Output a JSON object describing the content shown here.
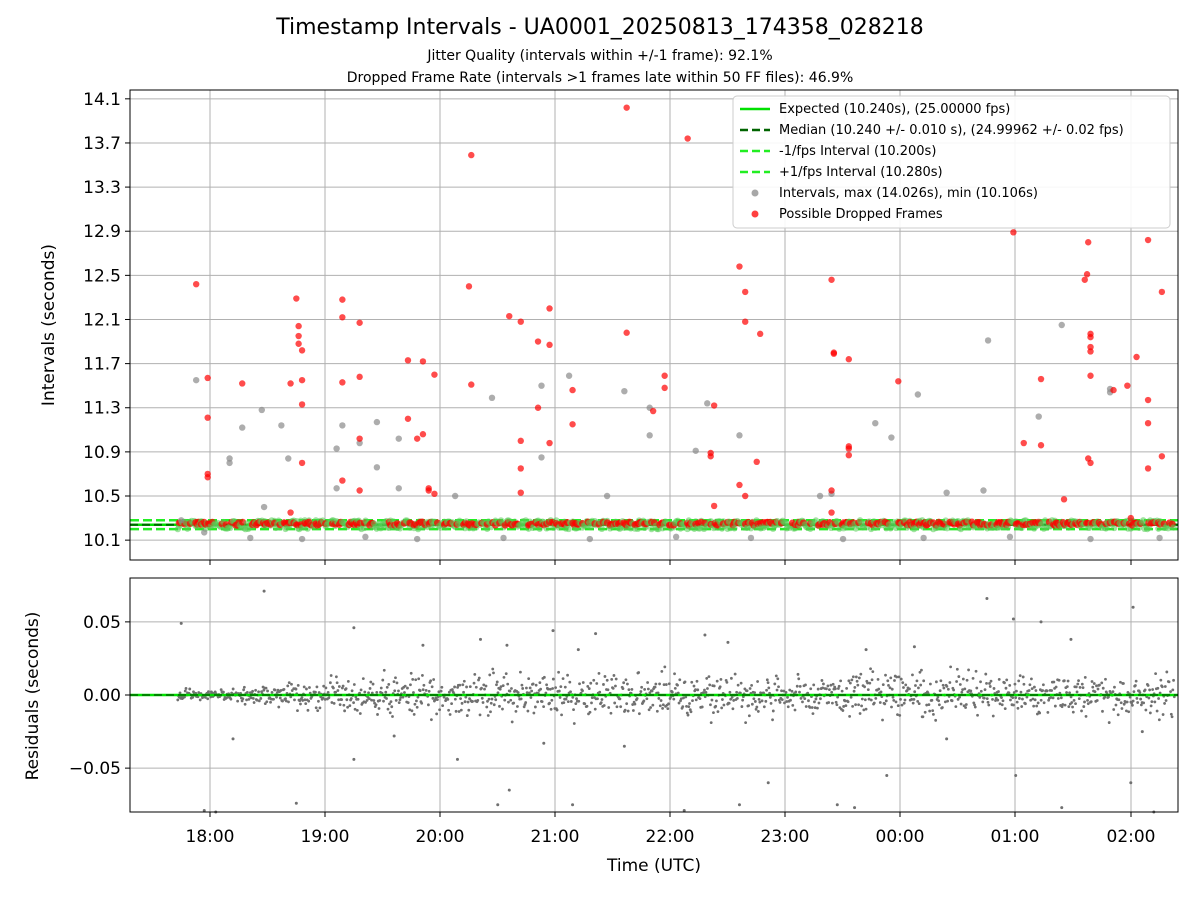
{
  "title": "Timestamp Intervals - UA0001_20250813_174358_028218",
  "subtitle1": "Jitter Quality (intervals within +/-1 frame): 92.1%",
  "subtitle2": "Dropped Frame Rate (intervals >1 frames late within 50 FF files): 46.9%",
  "colors": {
    "expected": "#00e000",
    "median": "#006400",
    "interval_band": "#22ee22",
    "normal_points": "#8a8a8a",
    "dropped_points": "#ff0000",
    "residual_points": "#707070"
  },
  "chart_data": [
    {
      "type": "scatter",
      "ylabel": "Intervals (seconds)",
      "xlabel": "",
      "x_tick_labels": [
        "18:00",
        "19:00",
        "20:00",
        "21:00",
        "22:00",
        "23:00",
        "00:00",
        "01:00",
        "02:00"
      ],
      "y_ticks": [
        10.1,
        10.5,
        10.9,
        11.3,
        11.7,
        12.1,
        12.5,
        12.9,
        13.3,
        13.7,
        14.1
      ],
      "y_tick_labels": [
        "10.1",
        "10.5",
        "10.9",
        "11.3",
        "11.7",
        "12.1",
        "12.5",
        "12.9",
        "13.3",
        "13.7",
        "14.1"
      ],
      "ylim": [
        9.92,
        14.18
      ],
      "grid": true,
      "legend_position": "top-right",
      "legend": [
        "Expected (10.240s), (25.00000 fps)",
        "Median (10.240 +/- 0.010 s), (24.99962 +/- 0.02 fps)",
        "-1/fps Interval (10.200s)",
        "+1/fps Interval (10.280s)",
        "Intervals, max (14.026s), min (10.106s)",
        "Possible Dropped Frames"
      ],
      "reference_lines": {
        "expected": 10.24,
        "median": 10.24,
        "minus_1fps": 10.2,
        "plus_1fps": 10.28
      },
      "series": [
        {
          "name": "Intervals, max (14.026s), min (10.106s)",
          "points": [
            [
              17.75,
              10.28
            ],
            [
              17.88,
              11.55
            ],
            [
              17.95,
              10.17
            ],
            [
              18.17,
              10.8
            ],
            [
              18.17,
              10.84
            ],
            [
              18.28,
              11.12
            ],
            [
              18.45,
              11.28
            ],
            [
              18.47,
              10.4
            ],
            [
              18.62,
              11.14
            ],
            [
              18.68,
              10.84
            ],
            [
              19.1,
              10.93
            ],
            [
              19.1,
              10.57
            ],
            [
              19.15,
              11.14
            ],
            [
              19.3,
              10.98
            ],
            [
              19.45,
              11.17
            ],
            [
              19.45,
              10.76
            ],
            [
              19.64,
              11.02
            ],
            [
              19.64,
              10.57
            ],
            [
              20.13,
              10.5
            ],
            [
              20.45,
              11.39
            ],
            [
              20.88,
              11.5
            ],
            [
              20.88,
              10.85
            ],
            [
              21.12,
              11.59
            ],
            [
              21.45,
              10.5
            ],
            [
              21.6,
              11.45
            ],
            [
              21.82,
              11.3
            ],
            [
              21.82,
              11.05
            ],
            [
              22.22,
              10.91
            ],
            [
              22.32,
              11.34
            ],
            [
              22.6,
              11.05
            ],
            [
              23.3,
              10.5
            ],
            [
              23.4,
              10.52
            ],
            [
              23.78,
              11.16
            ],
            [
              23.92,
              11.03
            ],
            [
              24.15,
              11.42
            ],
            [
              24.4,
              10.53
            ],
            [
              24.72,
              10.55
            ],
            [
              24.76,
              11.91
            ],
            [
              25.4,
              12.05
            ],
            [
              25.2,
              11.22
            ],
            [
              25.82,
              11.44
            ],
            [
              25.82,
              11.47
            ],
            [
              18.35,
              10.12
            ],
            [
              18.8,
              10.11
            ],
            [
              19.35,
              10.13
            ],
            [
              19.8,
              10.11
            ],
            [
              20.55,
              10.12
            ],
            [
              21.3,
              10.11
            ],
            [
              22.05,
              10.13
            ],
            [
              22.7,
              10.12
            ],
            [
              23.5,
              10.11
            ],
            [
              24.2,
              10.12
            ],
            [
              24.95,
              10.13
            ],
            [
              25.65,
              10.11
            ],
            [
              26.25,
              10.12
            ]
          ]
        },
        {
          "name": "Possible Dropped Frames",
          "points": [
            [
              17.88,
              12.42
            ],
            [
              17.98,
              11.57
            ],
            [
              17.98,
              11.21
            ],
            [
              17.98,
              10.7
            ],
            [
              17.98,
              10.67
            ],
            [
              18.28,
              11.52
            ],
            [
              18.7,
              11.52
            ],
            [
              18.75,
              12.29
            ],
            [
              18.77,
              12.04
            ],
            [
              18.77,
              11.95
            ],
            [
              18.77,
              11.88
            ],
            [
              18.8,
              11.82
            ],
            [
              18.8,
              11.55
            ],
            [
              18.8,
              11.33
            ],
            [
              18.8,
              10.8
            ],
            [
              18.7,
              10.35
            ],
            [
              19.15,
              12.28
            ],
            [
              19.15,
              12.12
            ],
            [
              19.15,
              11.53
            ],
            [
              19.15,
              10.64
            ],
            [
              19.3,
              12.07
            ],
            [
              19.3,
              11.58
            ],
            [
              19.3,
              11.02
            ],
            [
              19.3,
              10.55
            ],
            [
              19.72,
              11.73
            ],
            [
              19.72,
              11.2
            ],
            [
              19.8,
              11.02
            ],
            [
              19.85,
              11.72
            ],
            [
              19.85,
              11.06
            ],
            [
              19.9,
              10.55
            ],
            [
              19.9,
              10.57
            ],
            [
              19.95,
              11.6
            ],
            [
              19.95,
              10.52
            ],
            [
              20.27,
              13.59
            ],
            [
              20.25,
              12.4
            ],
            [
              20.27,
              11.51
            ],
            [
              20.6,
              12.13
            ],
            [
              20.7,
              12.08
            ],
            [
              20.7,
              11.0
            ],
            [
              20.7,
              10.75
            ],
            [
              20.7,
              10.53
            ],
            [
              20.85,
              11.3
            ],
            [
              20.85,
              11.9
            ],
            [
              20.95,
              11.87
            ],
            [
              20.95,
              12.2
            ],
            [
              20.95,
              10.98
            ],
            [
              21.15,
              11.46
            ],
            [
              21.15,
              11.15
            ],
            [
              21.62,
              14.02
            ],
            [
              21.62,
              11.98
            ],
            [
              21.85,
              11.27
            ],
            [
              21.95,
              11.59
            ],
            [
              21.95,
              11.48
            ],
            [
              22.15,
              13.74
            ],
            [
              22.35,
              10.89
            ],
            [
              22.35,
              10.86
            ],
            [
              22.38,
              11.32
            ],
            [
              22.38,
              10.41
            ],
            [
              22.6,
              12.58
            ],
            [
              22.65,
              12.35
            ],
            [
              22.65,
              12.08
            ],
            [
              22.78,
              11.97
            ],
            [
              22.75,
              10.81
            ],
            [
              22.6,
              10.6
            ],
            [
              22.65,
              10.5
            ],
            [
              23.4,
              12.46
            ],
            [
              23.42,
              11.79
            ],
            [
              23.42,
              11.8
            ],
            [
              23.55,
              11.74
            ],
            [
              23.55,
              10.95
            ],
            [
              23.55,
              10.93
            ],
            [
              23.55,
              10.87
            ],
            [
              23.4,
              10.55
            ],
            [
              23.4,
              10.35
            ],
            [
              23.98,
              11.54
            ],
            [
              24.98,
              12.89
            ],
            [
              25.07,
              10.98
            ],
            [
              25.22,
              11.56
            ],
            [
              25.22,
              10.96
            ],
            [
              25.42,
              10.47
            ],
            [
              25.6,
              12.46
            ],
            [
              25.62,
              12.51
            ],
            [
              25.63,
              12.8
            ],
            [
              25.65,
              11.97
            ],
            [
              25.65,
              11.94
            ],
            [
              25.65,
              11.85
            ],
            [
              25.65,
              11.81
            ],
            [
              25.65,
              11.59
            ],
            [
              25.63,
              10.84
            ],
            [
              25.65,
              10.8
            ],
            [
              25.85,
              11.46
            ],
            [
              25.97,
              11.5
            ],
            [
              26.05,
              11.76
            ],
            [
              26.15,
              12.82
            ],
            [
              26.15,
              11.37
            ],
            [
              26.15,
              11.16
            ],
            [
              26.15,
              10.75
            ],
            [
              26.27,
              12.35
            ],
            [
              26.27,
              10.86
            ],
            [
              26.0,
              10.3
            ]
          ]
        }
      ]
    },
    {
      "type": "scatter",
      "ylabel": "Residuals (seconds)",
      "xlabel": "Time (UTC)",
      "x_tick_labels": [
        "18:00",
        "19:00",
        "20:00",
        "21:00",
        "22:00",
        "23:00",
        "00:00",
        "01:00",
        "02:00"
      ],
      "y_ticks": [
        -0.05,
        0.0,
        0.05
      ],
      "y_tick_labels": [
        "−0.05",
        "0.00",
        "0.05"
      ],
      "ylim": [
        -0.08,
        0.08
      ],
      "grid": true,
      "series": [
        {
          "name": "",
          "points": [
            [
              17.75,
              0.049
            ],
            [
              18.47,
              0.071
            ],
            [
              19.25,
              0.046
            ],
            [
              20.35,
              0.038
            ],
            [
              20.58,
              0.034
            ],
            [
              20.98,
              0.044
            ],
            [
              21.35,
              0.042
            ],
            [
              22.3,
              0.041
            ],
            [
              24.12,
              0.033
            ],
            [
              24.75,
              0.066
            ],
            [
              24.98,
              0.052
            ],
            [
              25.22,
              0.05
            ],
            [
              26.02,
              0.06
            ],
            [
              25.48,
              0.038
            ],
            [
              22.5,
              0.036
            ],
            [
              21.2,
              0.031
            ],
            [
              19.85,
              0.034
            ],
            [
              23.7,
              0.031
            ],
            [
              17.95,
              -0.079
            ],
            [
              18.05,
              -0.08
            ],
            [
              18.75,
              -0.074
            ],
            [
              18.2,
              -0.03
            ],
            [
              19.25,
              -0.044
            ],
            [
              20.15,
              -0.044
            ],
            [
              20.5,
              -0.075
            ],
            [
              20.6,
              -0.065
            ],
            [
              21.15,
              -0.075
            ],
            [
              22.12,
              -0.079
            ],
            [
              22.6,
              -0.075
            ],
            [
              22.85,
              -0.06
            ],
            [
              23.45,
              -0.075
            ],
            [
              23.6,
              -0.077
            ],
            [
              23.88,
              -0.055
            ],
            [
              25.0,
              -0.055
            ],
            [
              25.4,
              -0.077
            ],
            [
              26.0,
              -0.06
            ],
            [
              26.2,
              -0.08
            ],
            [
              26.1,
              -0.025
            ],
            [
              24.4,
              -0.03
            ],
            [
              21.6,
              -0.035
            ],
            [
              20.9,
              -0.033
            ],
            [
              19.6,
              -0.028
            ]
          ]
        }
      ]
    }
  ]
}
